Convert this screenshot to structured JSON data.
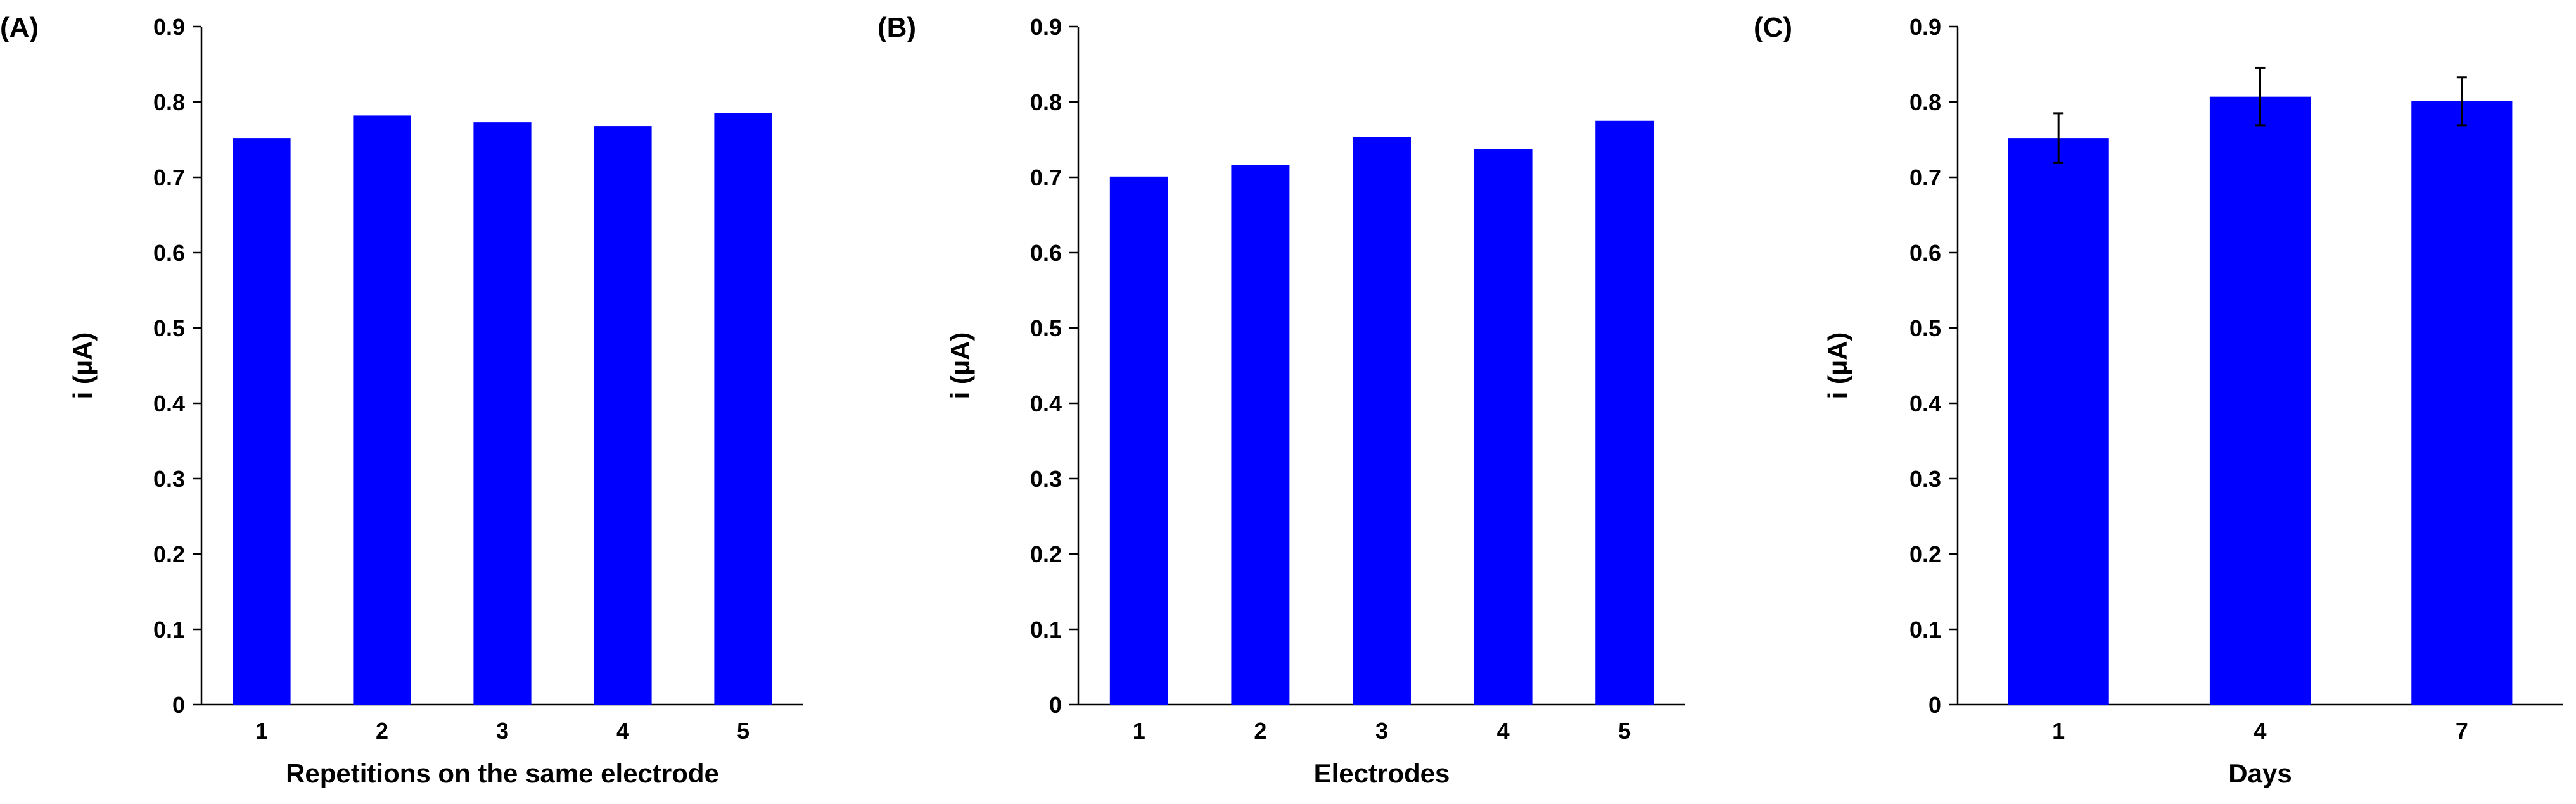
{
  "chart_data": [
    {
      "panel_label": "(A)",
      "type": "bar",
      "categories": [
        "1",
        "2",
        "3",
        "4",
        "5"
      ],
      "values": [
        0.752,
        0.782,
        0.773,
        0.768,
        0.785
      ],
      "xlabel": "Repetitions on the same electrode",
      "ylabel": "i (µA)",
      "ylim": [
        0,
        0.9
      ],
      "yticks": [
        "0",
        "0.1",
        "0.2",
        "0.3",
        "0.4",
        "0.5",
        "0.6",
        "0.7",
        "0.8",
        "0.9"
      ],
      "bar_color": "#0000FF",
      "grid": false
    },
    {
      "panel_label": "(B)",
      "type": "bar",
      "categories": [
        "1",
        "2",
        "3",
        "4",
        "5"
      ],
      "values": [
        0.701,
        0.716,
        0.753,
        0.737,
        0.775
      ],
      "xlabel": "Electrodes",
      "ylabel": "i (µA)",
      "ylim": [
        0,
        0.9
      ],
      "yticks": [
        "0",
        "0.1",
        "0.2",
        "0.3",
        "0.4",
        "0.5",
        "0.6",
        "0.7",
        "0.8",
        "0.9"
      ],
      "bar_color": "#0000FF",
      "grid": false
    },
    {
      "panel_label": "(C)",
      "type": "bar",
      "categories": [
        "1",
        "4",
        "7"
      ],
      "values": [
        0.752,
        0.807,
        0.801
      ],
      "errors": [
        0.033,
        0.038,
        0.032
      ],
      "xlabel": "Days",
      "ylabel": "i (µA)",
      "ylim": [
        0,
        0.9
      ],
      "yticks": [
        "0",
        "0.1",
        "0.2",
        "0.3",
        "0.4",
        "0.5",
        "0.6",
        "0.7",
        "0.8",
        "0.9"
      ],
      "bar_color": "#0000FF",
      "grid": false
    }
  ]
}
